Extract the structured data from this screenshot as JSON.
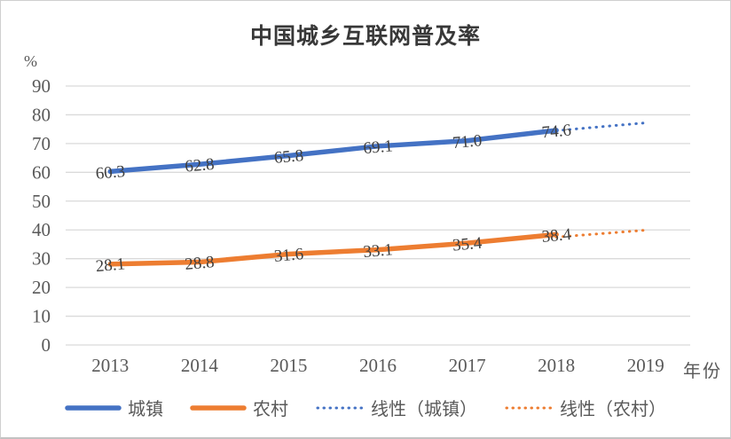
{
  "chart_data": {
    "type": "line",
    "title": "中国城乡互联网普及率",
    "y_unit": "%",
    "x_unit": "年份",
    "categories": [
      "2013",
      "2014",
      "2015",
      "2016",
      "2017",
      "2018",
      "2019"
    ],
    "y_ticks": [
      0,
      10,
      20,
      30,
      40,
      50,
      60,
      70,
      80,
      90
    ],
    "ylim": [
      0,
      90
    ],
    "grid": true,
    "legend_position": "bottom",
    "colors": {
      "urban": "#4472C4",
      "rural": "#ED7D31",
      "gridline": "#DADADA",
      "axis_text": "#595959",
      "data_label_text": "#3F3F3F"
    },
    "series": [
      {
        "key": "urban",
        "label": "城镇",
        "color": "#4472C4",
        "line_style": "solid",
        "values": [
          60.3,
          62.8,
          65.8,
          69.1,
          71.0,
          74.6
        ],
        "data_labels": [
          "60.3",
          "62.8",
          "65.8",
          "69.1",
          "71.0",
          "74.6"
        ]
      },
      {
        "key": "rural",
        "label": "农村",
        "color": "#ED7D31",
        "line_style": "solid",
        "values": [
          28.1,
          28.8,
          31.6,
          33.1,
          35.4,
          38.4
        ],
        "data_labels": [
          "28.1",
          "28.8",
          "31.6",
          "33.1",
          "35.4",
          "38.4"
        ]
      },
      {
        "key": "trend-urban",
        "label": "线性（城镇）",
        "color": "#4472C4",
        "line_style": "dotted",
        "x_indices": [
          5,
          6
        ],
        "values": [
          74.5,
          77.2
        ]
      },
      {
        "key": "trend-rural",
        "label": "线性（农村）",
        "color": "#ED7D31",
        "line_style": "dotted",
        "x_indices": [
          5,
          6
        ],
        "values": [
          37.5,
          39.9
        ]
      }
    ]
  }
}
